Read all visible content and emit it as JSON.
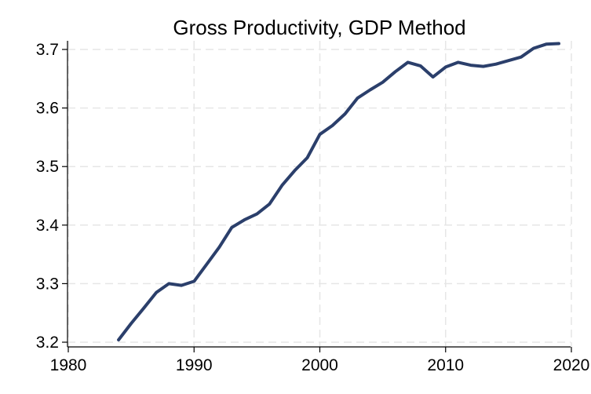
{
  "chart_data": {
    "type": "line",
    "title": "Gross Productivity, GDP Method",
    "xlabel": "",
    "ylabel": "",
    "xlim": [
      1980,
      2020
    ],
    "ylim": [
      3.2,
      3.7
    ],
    "x_ticks": [
      1980,
      1990,
      2000,
      2010,
      2020
    ],
    "y_ticks": [
      3.2,
      3.3,
      3.4,
      3.5,
      3.6,
      3.7
    ],
    "y_tick_labels": [
      "3.2",
      "3.3",
      "3.4",
      "3.5",
      "3.6",
      "3.7"
    ],
    "grid": true,
    "legend": "none",
    "series": [
      {
        "color": "#2b3f6b",
        "x": [
          1984,
          1985,
          1986,
          1987,
          1988,
          1989,
          1990,
          1991,
          1992,
          1993,
          1994,
          1995,
          1996,
          1997,
          1998,
          1999,
          2000,
          2001,
          2002,
          2003,
          2004,
          2005,
          2006,
          2007,
          2008,
          2009,
          2010,
          2011,
          2012,
          2013,
          2014,
          2015,
          2016,
          2017,
          2018,
          2019
        ],
        "values": [
          3.204,
          3.232,
          3.258,
          3.285,
          3.3,
          3.297,
          3.304,
          3.333,
          3.362,
          3.396,
          3.409,
          3.419,
          3.436,
          3.468,
          3.493,
          3.515,
          3.555,
          3.57,
          3.59,
          3.617,
          3.631,
          3.644,
          3.662,
          3.678,
          3.672,
          3.653,
          3.67,
          3.678,
          3.673,
          3.671,
          3.675,
          3.681,
          3.687,
          3.702,
          3.709,
          3.71
        ]
      }
    ]
  }
}
